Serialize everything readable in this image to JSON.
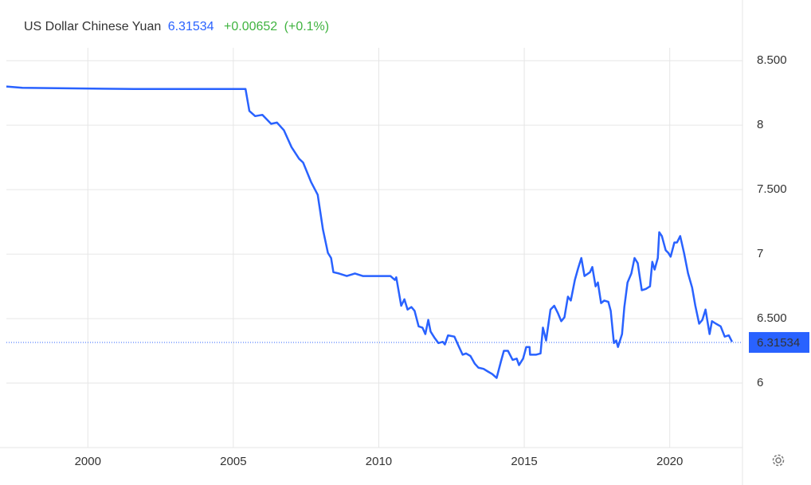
{
  "chart_data": {
    "type": "line",
    "title": "US Dollar Chinese Yuan",
    "price": 6.31534,
    "change": "+0.00652",
    "change_pct": "(+0.1%)",
    "change_color": "#3fb33f",
    "grid": true,
    "xlim": [
      1997.2,
      2022.5
    ],
    "xticks": [
      2000,
      2005,
      2010,
      2015,
      2020
    ],
    "ylim": [
      5.5,
      8.6
    ],
    "yticks": [
      {
        "value": 8.5,
        "label": "8.500"
      },
      8,
      {
        "value": 7.5,
        "label": "7.500"
      },
      7,
      {
        "value": 6.5,
        "label": "6.500"
      },
      6
    ],
    "x": [
      1997.2,
      1997.75,
      2001.6,
      2005.42,
      2005.55,
      2005.75,
      2006.0,
      2006.3,
      2006.5,
      2006.74,
      2007.0,
      2007.26,
      2007.4,
      2007.67,
      2007.9,
      2008.08,
      2008.25,
      2008.36,
      2008.44,
      2008.63,
      2008.9,
      2009.18,
      2009.45,
      2009.6,
      2010.4,
      2010.55,
      2010.6,
      2010.77,
      2010.88,
      2010.99,
      2011.12,
      2011.23,
      2011.37,
      2011.5,
      2011.6,
      2011.7,
      2011.78,
      2011.92,
      2012.05,
      2012.2,
      2012.27,
      2012.38,
      2012.6,
      2012.74,
      2012.88,
      2013.0,
      2013.15,
      2013.3,
      2013.42,
      2013.6,
      2013.75,
      2013.9,
      2014.05,
      2014.2,
      2014.3,
      2014.44,
      2014.6,
      2014.74,
      2014.82,
      2014.96,
      2015.07,
      2015.18,
      2015.2,
      2015.4,
      2015.56,
      2015.64,
      2015.75,
      2015.9,
      2016.03,
      2016.16,
      2016.27,
      2016.38,
      2016.5,
      2016.6,
      2016.74,
      2016.85,
      2016.96,
      2017.07,
      2017.26,
      2017.34,
      2017.45,
      2017.53,
      2017.64,
      2017.75,
      2017.89,
      2017.97,
      2018.08,
      2018.16,
      2018.22,
      2018.36,
      2018.44,
      2018.55,
      2018.68,
      2018.79,
      2018.9,
      2019.04,
      2019.18,
      2019.32,
      2019.4,
      2019.48,
      2019.59,
      2019.64,
      2019.73,
      2019.86,
      2019.95,
      2020.03,
      2020.16,
      2020.25,
      2020.36,
      2020.49,
      2020.63,
      2020.77,
      2020.88,
      2021.01,
      2021.12,
      2021.23,
      2021.37,
      2021.45,
      2021.59,
      2021.75,
      2021.89,
      2022.03,
      2022.14
    ],
    "series": [
      {
        "name": "US Dollar Chinese Yuan",
        "color": "#2962ff",
        "values": [
          8.3,
          8.29,
          8.28,
          8.28,
          8.11,
          8.07,
          8.08,
          8.01,
          8.02,
          7.96,
          7.83,
          7.74,
          7.71,
          7.56,
          7.46,
          7.19,
          7.01,
          6.97,
          6.86,
          6.85,
          6.83,
          6.85,
          6.83,
          6.83,
          6.83,
          6.8,
          6.82,
          6.6,
          6.65,
          6.57,
          6.59,
          6.56,
          6.44,
          6.43,
          6.38,
          6.49,
          6.4,
          6.35,
          6.31,
          6.32,
          6.3,
          6.37,
          6.36,
          6.29,
          6.22,
          6.23,
          6.21,
          6.15,
          6.12,
          6.11,
          6.09,
          6.07,
          6.04,
          6.17,
          6.25,
          6.25,
          6.18,
          6.19,
          6.14,
          6.19,
          6.28,
          6.28,
          6.22,
          6.22,
          6.23,
          6.43,
          6.33,
          6.57,
          6.6,
          6.54,
          6.48,
          6.51,
          6.67,
          6.64,
          6.8,
          6.89,
          6.97,
          6.83,
          6.86,
          6.9,
          6.75,
          6.78,
          6.62,
          6.64,
          6.63,
          6.56,
          6.31,
          6.33,
          6.28,
          6.38,
          6.59,
          6.78,
          6.85,
          6.97,
          6.93,
          6.72,
          6.73,
          6.75,
          6.94,
          6.88,
          6.97,
          7.17,
          7.14,
          7.03,
          7.01,
          6.98,
          7.09,
          7.09,
          7.14,
          7.01,
          6.85,
          6.74,
          6.6,
          6.46,
          6.49,
          6.57,
          6.38,
          6.48,
          6.46,
          6.44,
          6.36,
          6.37,
          6.32
        ]
      }
    ]
  }
}
